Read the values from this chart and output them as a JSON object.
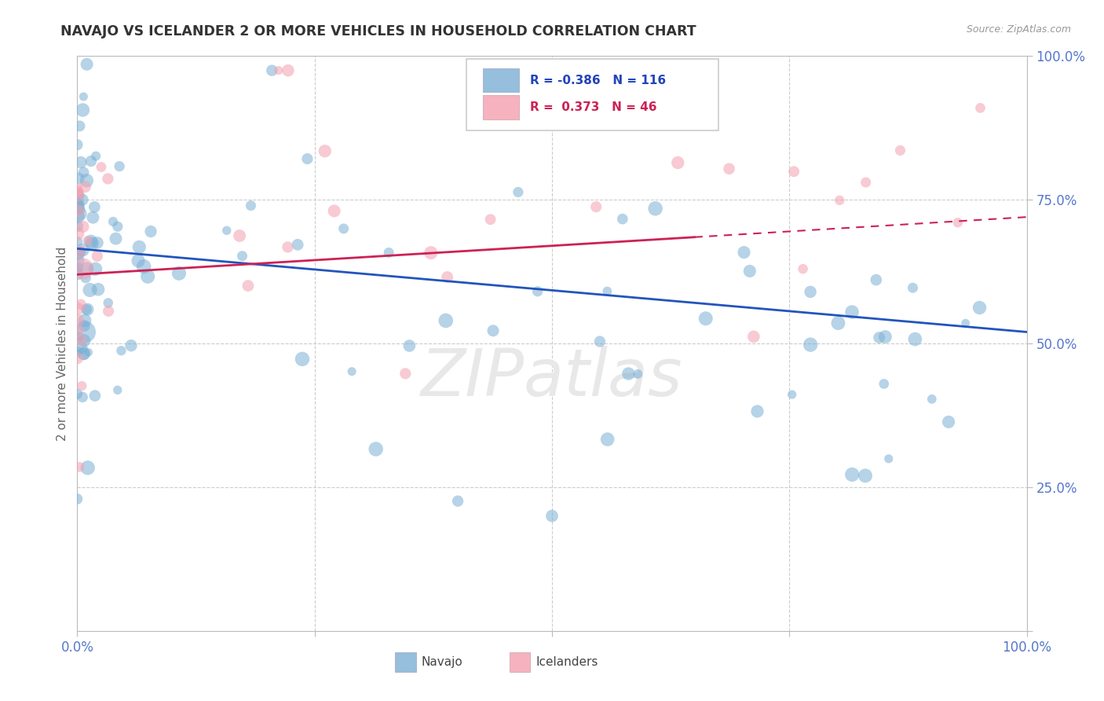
{
  "title": "NAVAJO VS ICELANDER 2 OR MORE VEHICLES IN HOUSEHOLD CORRELATION CHART",
  "source": "Source: ZipAtlas.com",
  "ylabel": "2 or more Vehicles in Household",
  "legend_navajo": "Navajo",
  "legend_icelander": "Icelanders",
  "navajo_R": -0.386,
  "navajo_N": 116,
  "icelander_R": 0.373,
  "icelander_N": 46,
  "navajo_color": "#7BAFD4",
  "icelander_color": "#F4A0B0",
  "navajo_line_color": "#2255BB",
  "icelander_line_color": "#CC2255",
  "background_color": "#FFFFFF",
  "grid_color": "#CCCCCC",
  "tick_color": "#5577CC",
  "title_color": "#333333",
  "ylabel_color": "#666666",
  "source_color": "#999999",
  "watermark": "ZIPatlas",
  "watermark_color": "#E8E8E8",
  "xlim": [
    0.0,
    1.0
  ],
  "ylim": [
    0.0,
    1.0
  ],
  "nav_line_x0": 0.0,
  "nav_line_y0": 0.665,
  "nav_line_x1": 1.0,
  "nav_line_y1": 0.52,
  "ice_line_x0": 0.0,
  "ice_line_y0": 0.62,
  "ice_line_x1": 1.0,
  "ice_line_y1": 0.72
}
